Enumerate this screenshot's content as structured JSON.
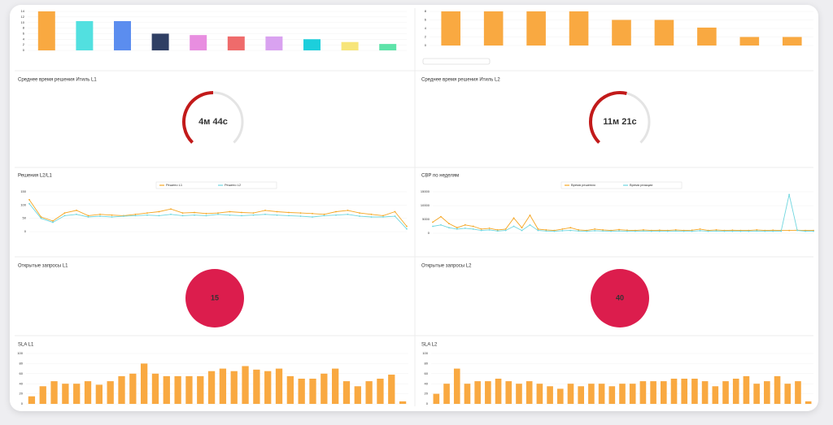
{
  "chart_data": [
    {
      "type": "bar",
      "colors": [
        "#f9a941",
        "#52e0e0",
        "#5b8def",
        "#2f3f64",
        "#e88ee0",
        "#ef6b6b",
        "#d9a2f0",
        "#1ccfdc",
        "#f7e57a",
        "#5ee3a9"
      ],
      "values": [
        14,
        10.5,
        10.5,
        6,
        5.5,
        5,
        5,
        4,
        3,
        2.3
      ],
      "ylim": [
        0,
        14
      ],
      "yticks": [
        0,
        2,
        4,
        6,
        8,
        10,
        12,
        14
      ]
    },
    {
      "type": "bar",
      "color": "#f9a941",
      "values": [
        8,
        8,
        8,
        8,
        6,
        6,
        4.2,
        2,
        2
      ],
      "ylim": [
        0,
        8
      ],
      "yticks": [
        0,
        2,
        4,
        6,
        8
      ]
    },
    {
      "type": "gauge",
      "title": "Среднее время решения Итиль L1",
      "value": 50,
      "value_label": "4м 44с",
      "color": "#c21a1a"
    },
    {
      "type": "gauge",
      "title": "Среднее время решения Итиль L2",
      "value": 55,
      "value_label": "11м 21с",
      "color": "#c21a1a"
    },
    {
      "type": "line",
      "title": "Решения L2/L1",
      "ylim": [
        0,
        150
      ],
      "yticks": [
        0,
        50,
        100,
        150
      ],
      "series": [
        {
          "name": "Решено L1",
          "color": "#f5a623",
          "values": [
            120,
            55,
            40,
            70,
            80,
            60,
            65,
            62,
            60,
            65,
            70,
            75,
            85,
            70,
            72,
            68,
            70,
            75,
            72,
            70,
            80,
            75,
            72,
            70,
            68,
            65,
            75,
            80,
            70,
            65,
            60,
            75,
            20
          ]
        },
        {
          "name": "Решено L2",
          "color": "#6fd6df",
          "values": [
            105,
            50,
            35,
            60,
            65,
            55,
            58,
            55,
            58,
            60,
            62,
            60,
            65,
            60,
            62,
            60,
            65,
            62,
            60,
            62,
            65,
            62,
            60,
            58,
            55,
            60,
            62,
            65,
            58,
            55,
            55,
            58,
            10
          ]
        }
      ]
    },
    {
      "type": "line",
      "title": "СВР по неделям",
      "ylim": [
        0,
        15000
      ],
      "yticks": [
        0,
        5000,
        10000,
        15000
      ],
      "series": [
        {
          "name": "Время решения",
          "color": "#f5a623",
          "values": [
            4000,
            6000,
            3500,
            2000,
            3000,
            2500,
            1500,
            1800,
            1200,
            1500,
            5500,
            2000,
            6500,
            1500,
            1200,
            1000,
            1500,
            2000,
            1200,
            1000,
            1500,
            1200,
            1000,
            1300,
            1100,
            1000,
            1200,
            1000,
            1100,
            1000,
            1200,
            1000,
            1100,
            1500,
            1000,
            1200,
            1000,
            1100,
            1000,
            1000,
            1200,
            1000,
            1100,
            1000,
            1000,
            1100,
            1000,
            1000
          ]
        },
        {
          "name": "Время реакции",
          "color": "#6fd6df",
          "values": [
            2500,
            3000,
            2000,
            1500,
            1800,
            1500,
            1000,
            1200,
            800,
            1000,
            2500,
            1000,
            3000,
            1000,
            800,
            700,
            900,
            1000,
            800,
            700,
            900,
            800,
            700,
            800,
            700,
            700,
            800,
            700,
            700,
            700,
            800,
            700,
            700,
            900,
            700,
            800,
            700,
            700,
            700,
            700,
            800,
            700,
            700,
            700,
            14000,
            1000,
            700,
            700
          ]
        }
      ]
    },
    {
      "type": "kpi",
      "title": "Открытые запросы L1",
      "value": 15,
      "color": "#dc1d4d"
    },
    {
      "type": "kpi",
      "title": "Открытые запросы L2",
      "value": 40,
      "color": "#dc1d4d"
    },
    {
      "type": "bar",
      "title": "SLA L1",
      "color": "#f9a941",
      "ylim": [
        0,
        100
      ],
      "yticks": [
        0,
        20,
        40,
        60,
        80,
        100
      ],
      "values": [
        15,
        35,
        45,
        40,
        40,
        45,
        38,
        45,
        55,
        60,
        80,
        60,
        55,
        55,
        55,
        55,
        65,
        70,
        65,
        75,
        68,
        65,
        70,
        55,
        50,
        50,
        60,
        70,
        45,
        35,
        45,
        50,
        58,
        5
      ]
    },
    {
      "type": "bar",
      "title": "SLA L2",
      "color": "#f9a941",
      "ylim": [
        0,
        100
      ],
      "yticks": [
        0,
        20,
        40,
        60,
        80,
        100
      ],
      "values": [
        20,
        40,
        70,
        40,
        45,
        45,
        50,
        45,
        40,
        45,
        40,
        35,
        30,
        40,
        35,
        40,
        40,
        35,
        40,
        40,
        45,
        45,
        45,
        50,
        50,
        50,
        45,
        35,
        45,
        50,
        55,
        40,
        45,
        55,
        40,
        45,
        5
      ]
    }
  ]
}
